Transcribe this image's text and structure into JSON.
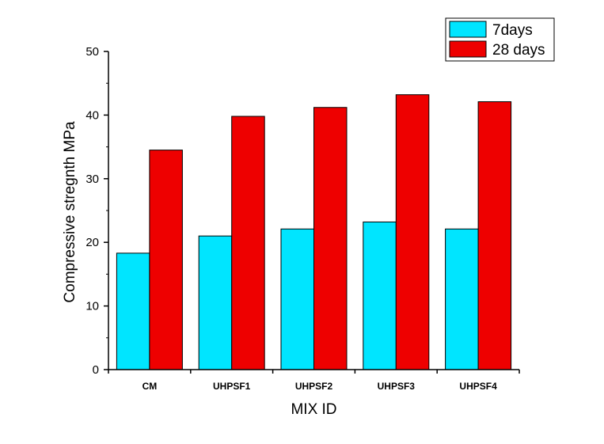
{
  "chart_data": {
    "type": "bar",
    "title": "",
    "xlabel": "MIX ID",
    "ylabel": "Compressive stregnth MPa",
    "ylim": [
      0,
      50
    ],
    "yticks": [
      0,
      10,
      20,
      30,
      40,
      50
    ],
    "categories": [
      "CM",
      "UHPSF1",
      "UHPSF2",
      "UHPSF3",
      "UHPSF4"
    ],
    "series": [
      {
        "name": "7days",
        "color": "#00E5FF",
        "values": [
          18.3,
          21.0,
          22.1,
          23.2,
          22.1
        ]
      },
      {
        "name": "28 days",
        "color": "#EE0000",
        "values": [
          34.5,
          39.8,
          41.2,
          43.2,
          42.1
        ]
      }
    ],
    "legend_position": "top-right",
    "grid": false
  }
}
